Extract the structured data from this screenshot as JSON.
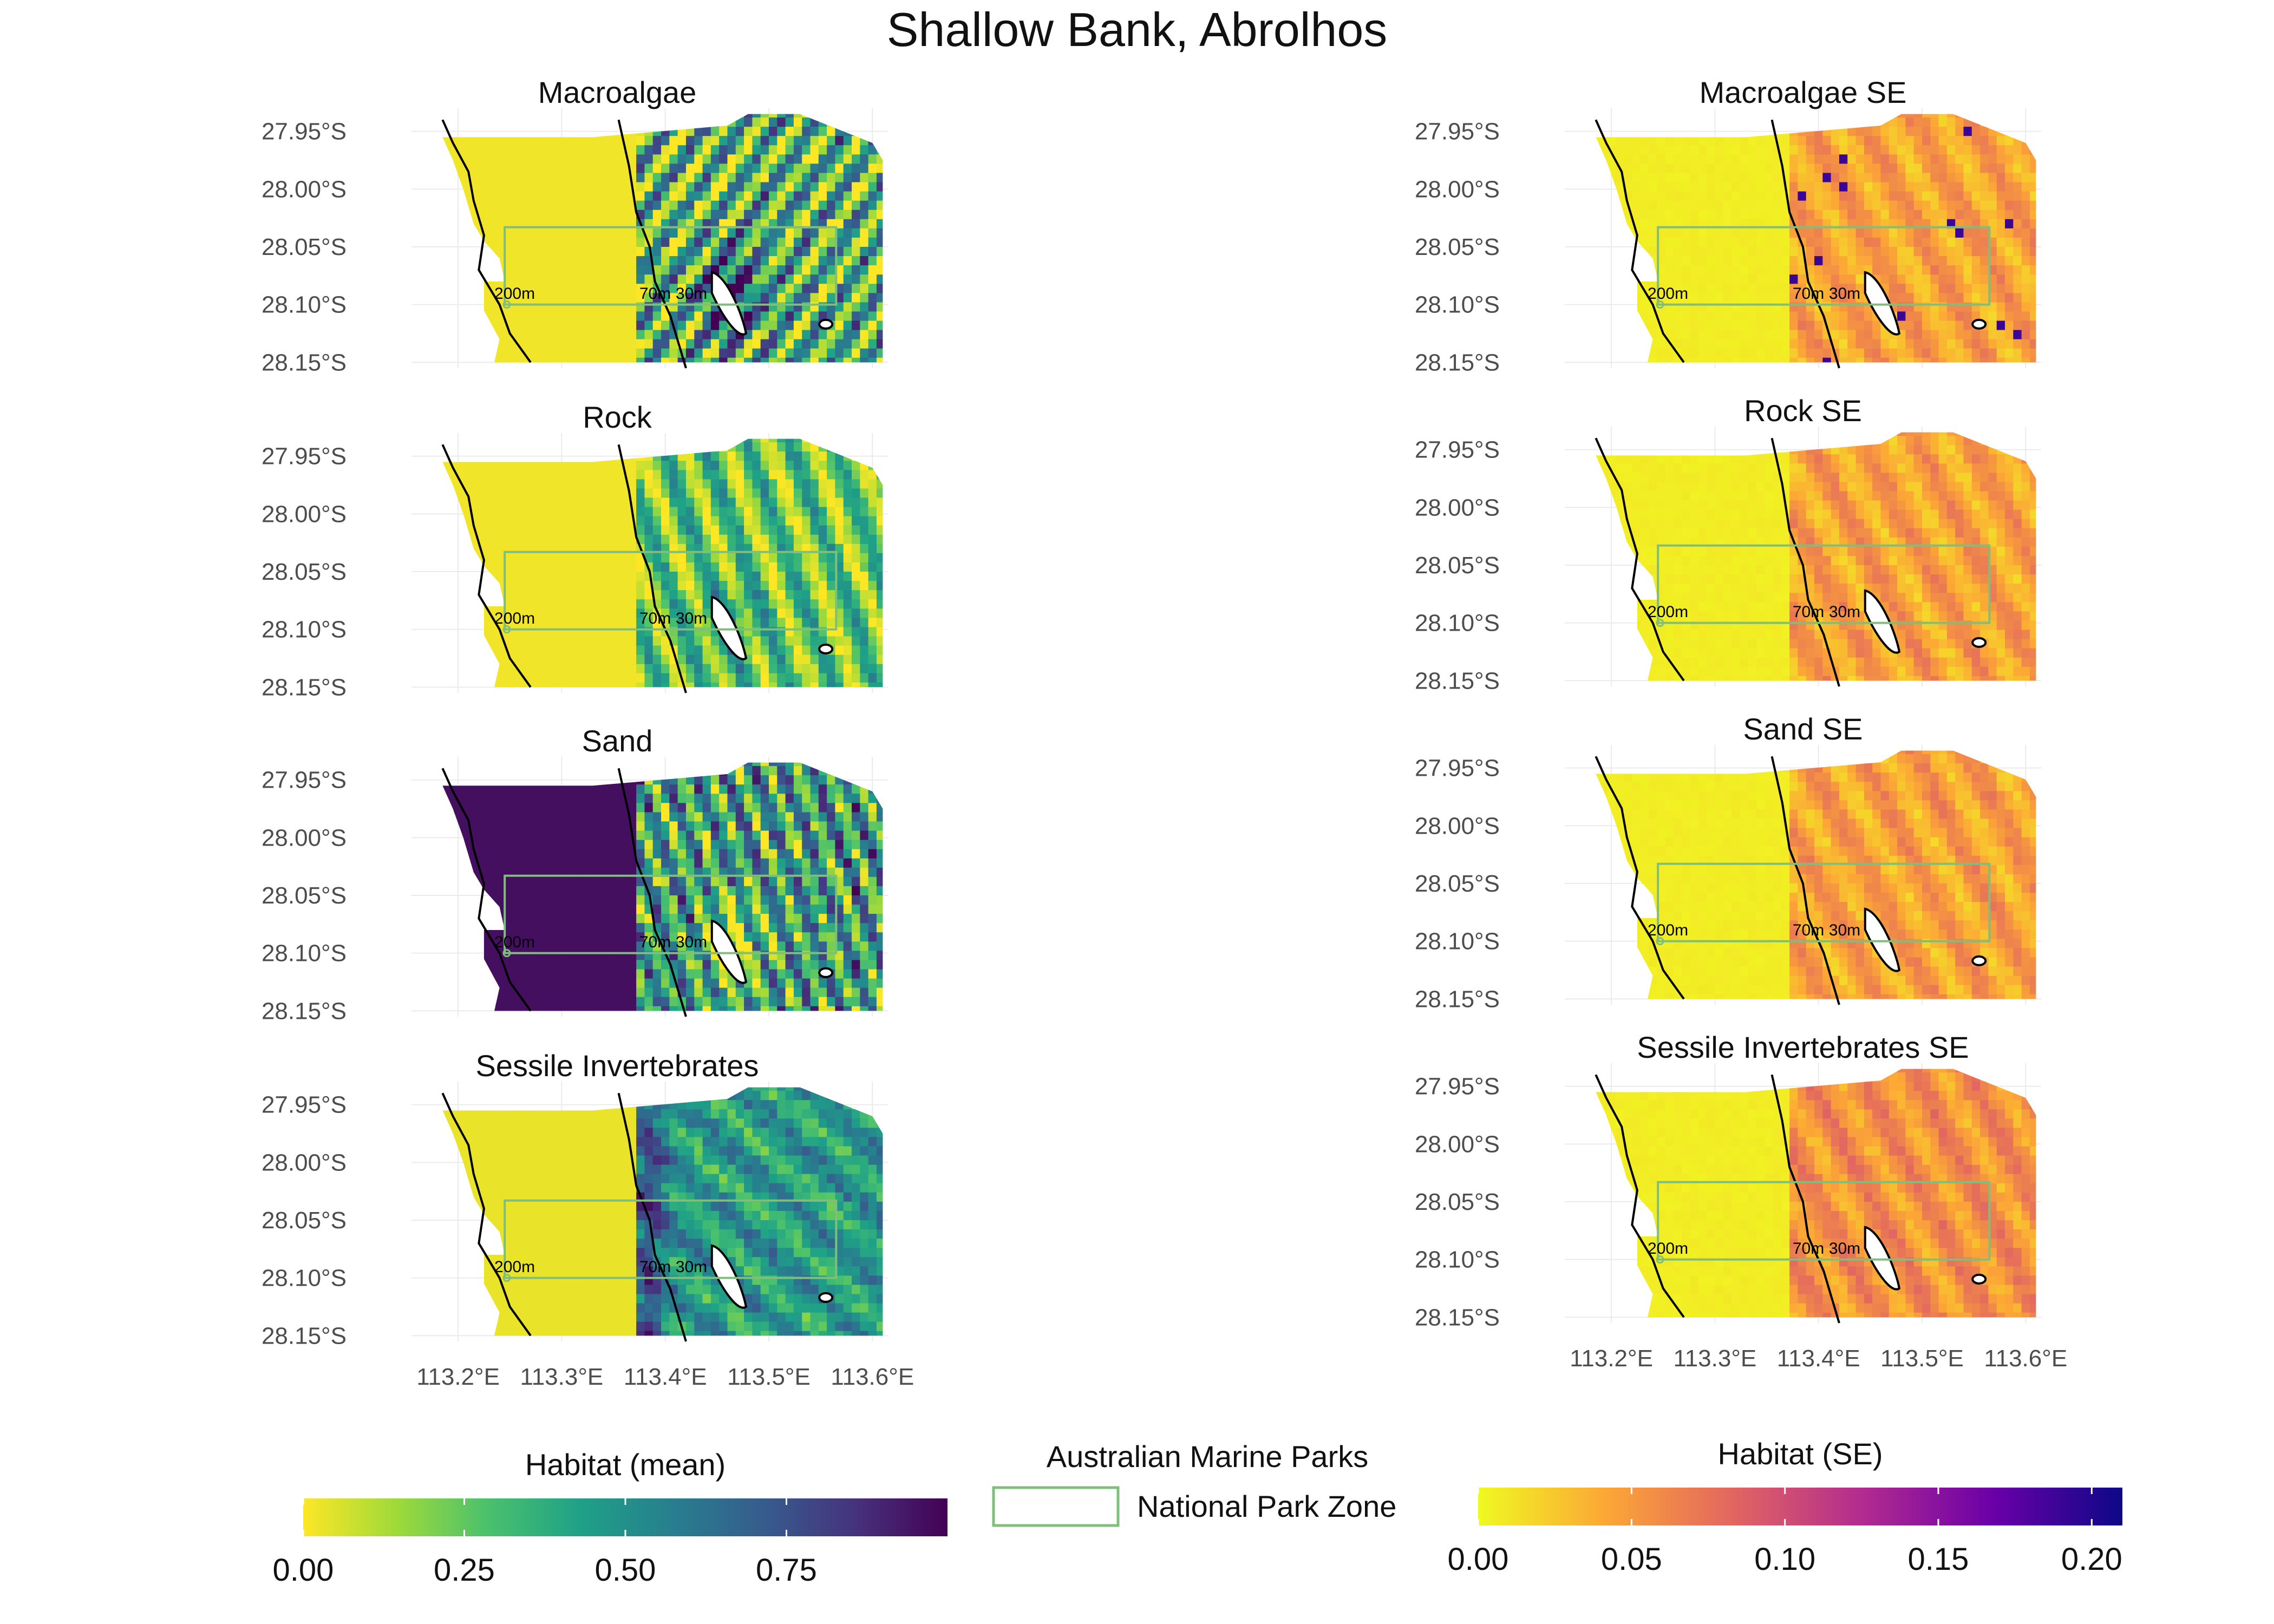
{
  "title": "Shallow Bank, Abrolhos",
  "chart_data": {
    "type": "heatmap",
    "x_ticks": [
      "113.2°E",
      "113.3°E",
      "113.4°E",
      "113.5°E",
      "113.6°E"
    ],
    "x_tick_values": [
      113.2,
      113.3,
      113.4,
      113.5,
      113.6
    ],
    "y_ticks": [
      "27.95°S",
      "28.00°S",
      "28.05°S",
      "28.10°S",
      "28.15°S"
    ],
    "y_tick_values": [
      -27.95,
      -28.0,
      -28.05,
      -28.1,
      -28.15
    ],
    "xlim": [
      113.155,
      113.615
    ],
    "ylim": [
      -28.155,
      -27.93
    ],
    "contour_labels": [
      "200m",
      "70m",
      "30m"
    ],
    "panels": [
      {
        "title": "Macroalgae",
        "scale": "mean",
        "column": 0,
        "row": 0
      },
      {
        "title": "Rock",
        "scale": "mean",
        "column": 0,
        "row": 1
      },
      {
        "title": "Sand",
        "scale": "mean",
        "column": 0,
        "row": 2
      },
      {
        "title": "Sessile Invertebrates",
        "scale": "mean",
        "column": 0,
        "row": 3
      },
      {
        "title": "Macroalgae SE",
        "scale": "se",
        "column": 1,
        "row": 0
      },
      {
        "title": "Rock SE",
        "scale": "se",
        "column": 1,
        "row": 1
      },
      {
        "title": "Sand SE",
        "scale": "se",
        "column": 1,
        "row": 2
      },
      {
        "title": "Sessile Invertebrates SE",
        "scale": "se",
        "column": 1,
        "row": 3
      }
    ],
    "national_park_zone": {
      "lon": [
        113.245,
        113.565
      ],
      "lat": [
        -28.1,
        -28.033
      ]
    },
    "legends": {
      "mean": {
        "title": "Habitat (mean)",
        "range": [
          0,
          1
        ],
        "ticks": [
          0.0,
          0.25,
          0.5,
          0.75
        ],
        "tick_labels": [
          "0.00",
          "0.25",
          "0.50",
          "0.75"
        ],
        "colors": [
          "#fde725",
          "#a0da39",
          "#4ac16d",
          "#1fa187",
          "#277f8e",
          "#365c8d",
          "#46327e",
          "#440154"
        ]
      },
      "se": {
        "title": "Habitat (SE)",
        "range": [
          0,
          0.21
        ],
        "ticks": [
          0.0,
          0.05,
          0.1,
          0.15,
          0.2
        ],
        "tick_labels": [
          "0.00",
          "0.05",
          "0.10",
          "0.15",
          "0.20"
        ],
        "colors": [
          "#f0f921",
          "#fca636",
          "#e16462",
          "#b12a90",
          "#6a00a8",
          "#0d0887"
        ]
      },
      "parks": {
        "title": "Australian Marine Parks",
        "item_label": "National Park Zone",
        "color": "#7fbf7b"
      }
    }
  }
}
